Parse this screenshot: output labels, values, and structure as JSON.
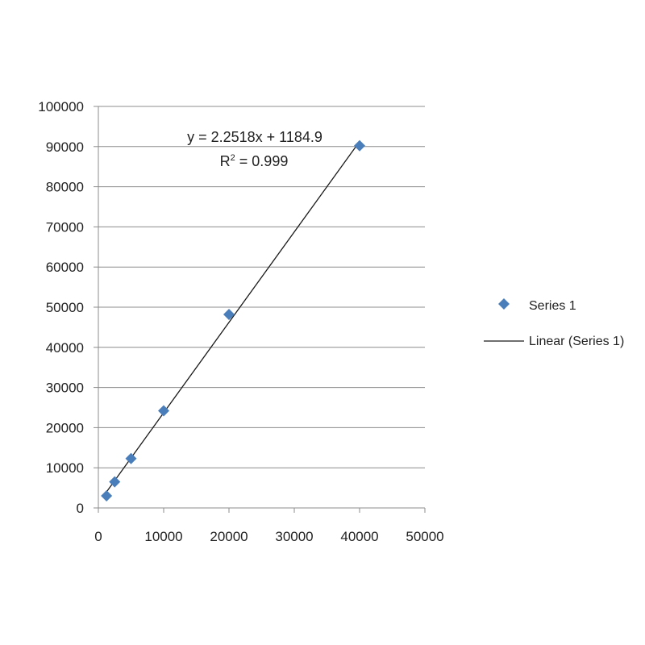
{
  "chart_data": {
    "type": "scatter",
    "xlim": [
      0,
      50000
    ],
    "ylim": [
      0,
      100000
    ],
    "x_ticks": [
      0,
      10000,
      20000,
      30000,
      40000,
      50000
    ],
    "y_ticks": [
      0,
      10000,
      20000,
      30000,
      40000,
      50000,
      60000,
      70000,
      80000,
      90000,
      100000
    ],
    "grid": {
      "horizontal": true,
      "vertical": false
    },
    "series": [
      {
        "name": "Series 1",
        "marker": "diamond",
        "color": "#4a7ebb",
        "points": [
          {
            "x": 1250,
            "y": 3000
          },
          {
            "x": 2500,
            "y": 6500
          },
          {
            "x": 5000,
            "y": 12300
          },
          {
            "x": 10000,
            "y": 24200
          },
          {
            "x": 20000,
            "y": 48200
          },
          {
            "x": 40000,
            "y": 90200
          }
        ]
      }
    ],
    "trendline": {
      "name": "Linear (Series 1)",
      "slope": 2.2518,
      "intercept": 1184.9,
      "x_range": [
        1250,
        40000
      ],
      "color": "#1a1a1a",
      "equation_label": "y = 2.2518x + 1184.9",
      "r2_prefix": "R",
      "r2_sup": "2",
      "r2_value": " = 0.999"
    },
    "legend": {
      "placement": "right",
      "entries": [
        "Series 1",
        "Linear (Series 1)"
      ]
    }
  }
}
